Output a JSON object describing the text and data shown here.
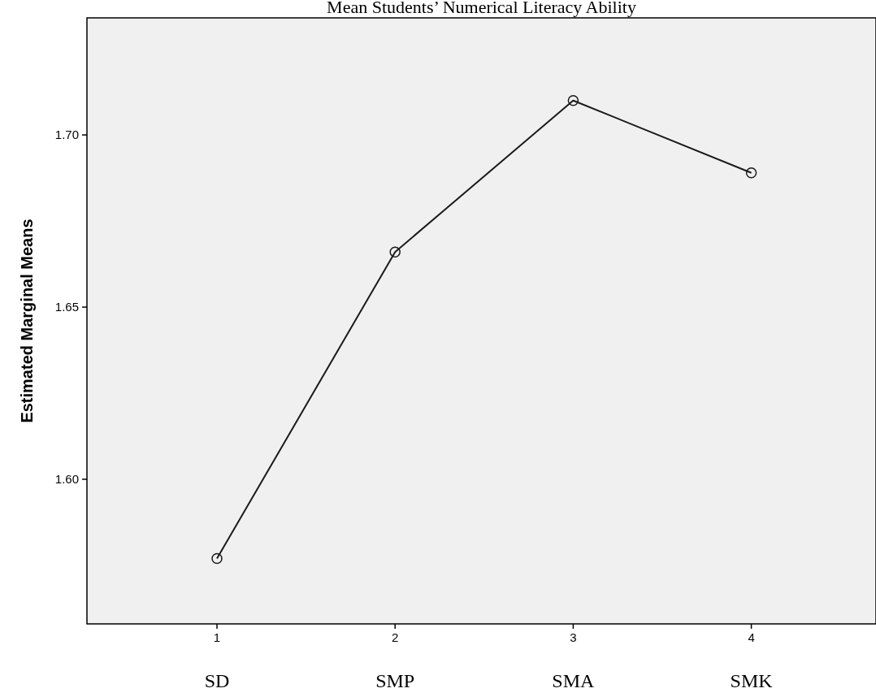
{
  "chart_data": {
    "type": "line",
    "title": "Mean Students’ Numerical Literacy Ability",
    "ylabel": "Estimated Marginal Means",
    "categories": [
      "1",
      "2",
      "3",
      "4"
    ],
    "series": [
      {
        "color": "#1a1a1a",
        "values": [
          1.577,
          1.666,
          1.71,
          1.689
        ]
      }
    ],
    "ylim": [
      1.558,
      1.734
    ],
    "yticks": [
      {
        "value": 1.6,
        "label": "1.60"
      },
      {
        "value": 1.65,
        "label": "1.65"
      },
      {
        "value": 1.7,
        "label": "1.70"
      }
    ],
    "marker": "circle",
    "grid": false,
    "annotations": [
      "SD",
      "SMP",
      "SMA",
      "SMK"
    ]
  }
}
